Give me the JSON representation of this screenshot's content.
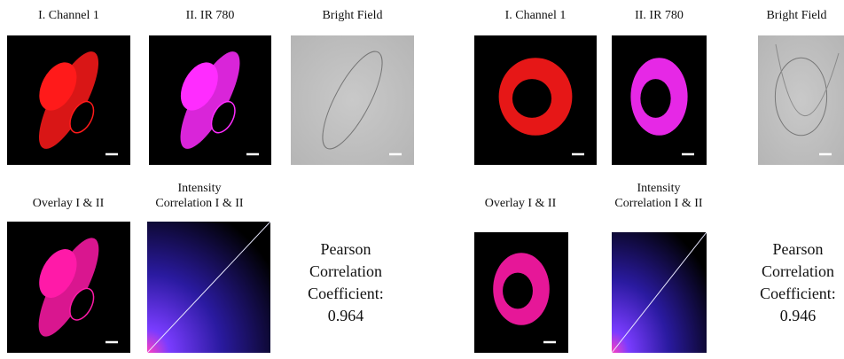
{
  "panels": [
    {
      "images": [
        {
          "label": "I. Channel 1"
        },
        {
          "label": "II. IR 780"
        },
        {
          "label": "Bright Field"
        }
      ],
      "overlay_label": "Overlay I & II",
      "correlation_label": [
        "Intensity",
        "Correlation I & II"
      ],
      "pearson_label": [
        "Pearson",
        "Correlation",
        "Coefficient:"
      ],
      "pearson_value": 0.964
    },
    {
      "images": [
        {
          "label": "I. Channel 1"
        },
        {
          "label": "II. IR 780"
        },
        {
          "label": "Bright Field"
        }
      ],
      "overlay_label": "Overlay I & II",
      "correlation_label": [
        "Intensity",
        "Correlation I & II"
      ],
      "pearson_label": [
        "Pearson",
        "Correlation",
        "Coefficient:"
      ],
      "pearson_value": 0.946
    }
  ]
}
